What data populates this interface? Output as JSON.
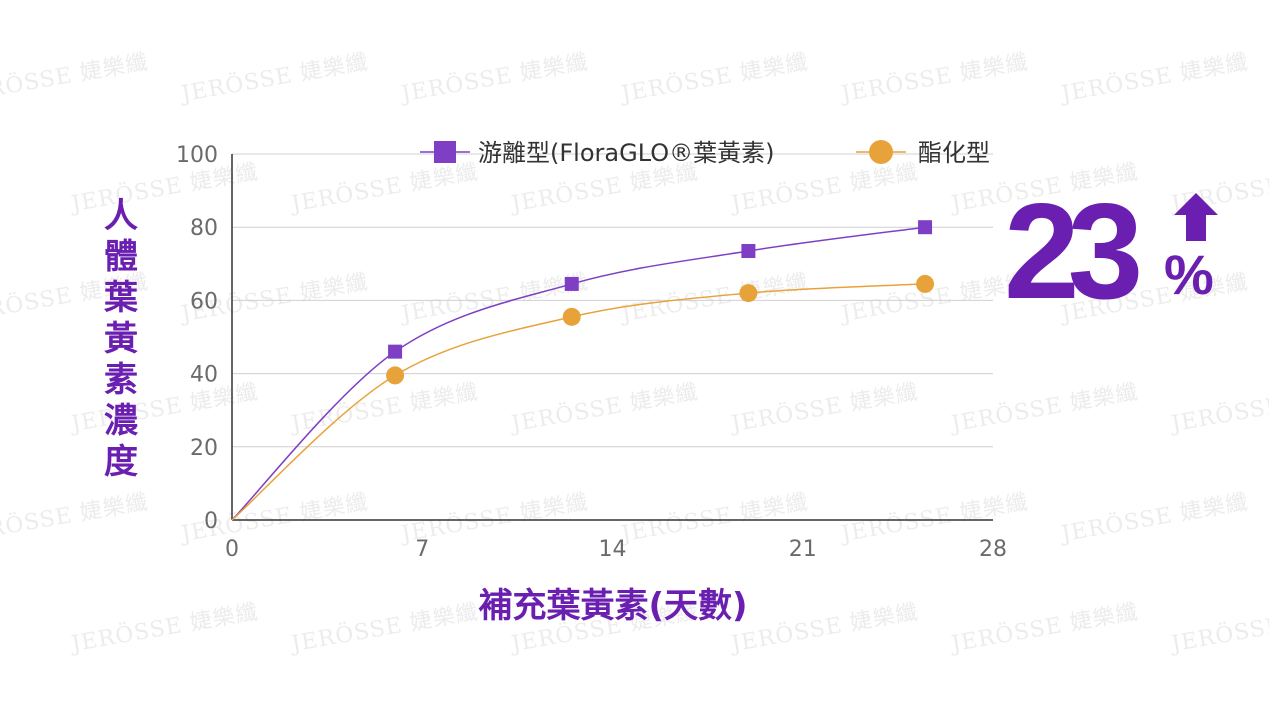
{
  "chart_data": {
    "type": "line",
    "x": [
      0,
      6,
      12.5,
      19,
      25.5
    ],
    "series": [
      {
        "name": "游離型(FloraGLO®葉黃素)",
        "values": [
          0,
          46,
          64.5,
          73.5,
          80
        ],
        "color": "#7e3fc4",
        "marker": "square"
      },
      {
        "name": "酯化型",
        "values": [
          0,
          39.5,
          55.5,
          62,
          64.5
        ],
        "color": "#e8a23a",
        "marker": "circle"
      }
    ],
    "xticks": [
      "0",
      "7",
      "14",
      "21",
      "28"
    ],
    "yticks": [
      "0",
      "20",
      "40",
      "60",
      "80",
      "100"
    ],
    "xlim": [
      0,
      28
    ],
    "ylim": [
      0,
      100
    ],
    "xlabel": "補充葉黃素(天數)",
    "ylabel": "人體葉黃素濃度",
    "grid": true,
    "legend_position": "top"
  },
  "callout": {
    "number": "23",
    "unit": "%",
    "arrow": "up-arrow-icon"
  },
  "watermark": {
    "text": "JERÖSSE 婕樂纖"
  }
}
